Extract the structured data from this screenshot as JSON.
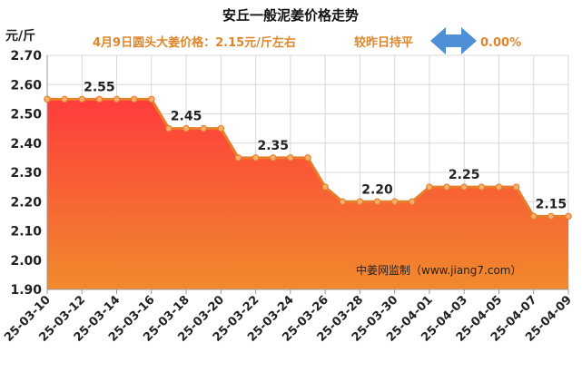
{
  "header": {
    "title": "安丘一般泥姜价格走势",
    "price_text": "4月9日圆头大姜价格：2.15元/斤左右",
    "change_text": "较昨日持平",
    "change_pct": "0.00%",
    "change_icon": "left-right-arrow-icon"
  },
  "watermark": "中姜网监制（www.jiang7.com）",
  "colors": {
    "accent": "#e0862a",
    "line": "#e77e2a",
    "fill_top": "#ff3c3c",
    "fill_bottom": "#f08a2c",
    "arrow": "#4f8fd8"
  },
  "chart_data": {
    "type": "area",
    "title": "安丘一般泥姜价格走势",
    "ylabel": "元/斤",
    "xlabel": "",
    "ylim": [
      1.9,
      2.7
    ],
    "yticks": [
      "1.90",
      "2.00",
      "2.10",
      "2.20",
      "2.30",
      "2.40",
      "2.50",
      "2.60",
      "2.70"
    ],
    "grid": true,
    "x_tick_labels": [
      "25-03-10",
      "25-03-12",
      "25-03-14",
      "25-03-16",
      "25-03-18",
      "25-03-20",
      "25-03-22",
      "25-03-24",
      "25-03-26",
      "25-03-28",
      "25-03-30",
      "25-04-01",
      "25-04-03",
      "25-04-05",
      "25-04-07",
      "25-04-09"
    ],
    "x": [
      "25-03-10",
      "25-03-11",
      "25-03-12",
      "25-03-13",
      "25-03-14",
      "25-03-15",
      "25-03-16",
      "25-03-17",
      "25-03-18",
      "25-03-19",
      "25-03-20",
      "25-03-21",
      "25-03-22",
      "25-03-23",
      "25-03-24",
      "25-03-25",
      "25-03-26",
      "25-03-27",
      "25-03-28",
      "25-03-29",
      "25-03-30",
      "25-03-31",
      "25-04-01",
      "25-04-02",
      "25-04-03",
      "25-04-04",
      "25-04-05",
      "25-04-06",
      "25-04-07",
      "25-04-08",
      "25-04-09"
    ],
    "values": [
      2.55,
      2.55,
      2.55,
      2.55,
      2.55,
      2.55,
      2.55,
      2.45,
      2.45,
      2.45,
      2.45,
      2.35,
      2.35,
      2.35,
      2.35,
      2.35,
      2.25,
      2.2,
      2.2,
      2.2,
      2.2,
      2.2,
      2.25,
      2.25,
      2.25,
      2.25,
      2.25,
      2.25,
      2.15,
      2.15,
      2.15
    ],
    "data_labels": [
      {
        "x": "25-03-13",
        "text": "2.55"
      },
      {
        "x": "25-03-18",
        "text": "2.45"
      },
      {
        "x": "25-03-23",
        "text": "2.35"
      },
      {
        "x": "25-03-29",
        "text": "2.20"
      },
      {
        "x": "25-04-03",
        "text": "2.25"
      },
      {
        "x": "25-04-08",
        "text": "2.15"
      }
    ]
  }
}
